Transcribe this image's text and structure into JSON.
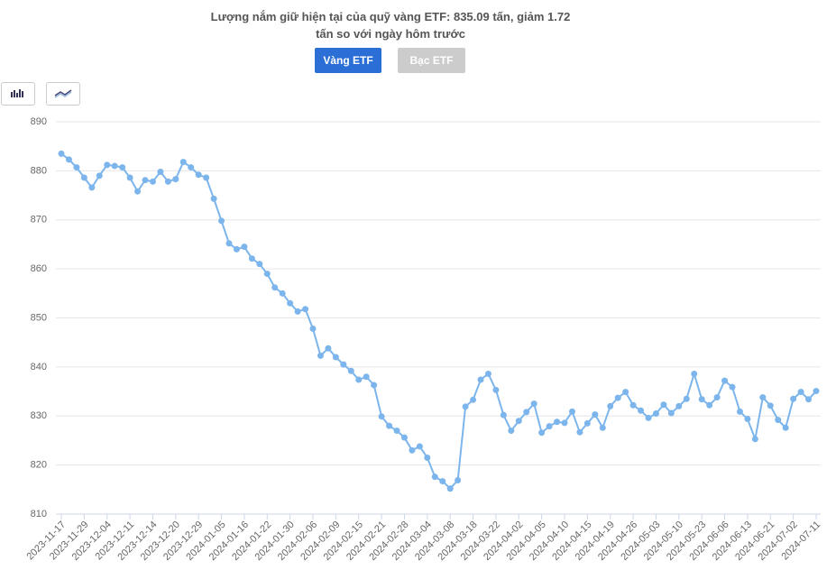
{
  "buttons": [
    "Vàng ETF",
    "Bạc ETF"
  ],
  "chart_data": {
    "type": "line",
    "title": "Lượng nắm giữ hiện tại của quỹ vàng ETF: 835.09 tấn, giảm 1.72 tấn so với ngày hôm trước",
    "color": "#7cb5ec",
    "grid": true,
    "ylim": [
      810,
      890
    ],
    "yticks": [
      810,
      820,
      830,
      840,
      850,
      860,
      870,
      880,
      890
    ],
    "categories": [
      "2023-11-17",
      null,
      null,
      "2023-11-29",
      null,
      null,
      "2023-12-04",
      null,
      null,
      "2023-12-11",
      null,
      null,
      "2023-12-14",
      null,
      null,
      "2023-12-20",
      null,
      null,
      "2023-12-29",
      null,
      null,
      "2024-01-05",
      null,
      null,
      "2024-01-16",
      null,
      null,
      "2024-01-22",
      null,
      null,
      "2024-01-30",
      null,
      null,
      "2024-02-06",
      null,
      null,
      "2024-02-09",
      null,
      null,
      "2024-02-15",
      null,
      null,
      "2024-02-21",
      null,
      null,
      "2024-02-28",
      null,
      null,
      "2024-03-04",
      null,
      null,
      "2024-03-08",
      null,
      null,
      "2024-03-18",
      null,
      null,
      "2024-03-22",
      null,
      null,
      "2024-04-02",
      null,
      null,
      "2024-04-05",
      null,
      null,
      "2024-04-10",
      null,
      null,
      "2024-04-15",
      null,
      null,
      "2024-04-19",
      null,
      null,
      "2024-04-26",
      null,
      null,
      "2024-05-03",
      null,
      null,
      "2024-05-10",
      null,
      null,
      "2024-05-23",
      null,
      null,
      "2024-06-06",
      null,
      null,
      "2024-06-13",
      null,
      null,
      "2024-06-21",
      null,
      null,
      "2024-07-02",
      null,
      null,
      "2024-07-11"
    ],
    "values": [
      883.5,
      882.3,
      880.7,
      878.6,
      876.6,
      879.0,
      881.2,
      881.0,
      880.7,
      878.6,
      875.8,
      878.1,
      877.8,
      879.8,
      877.8,
      878.3,
      881.8,
      880.7,
      879.2,
      878.6,
      874.3,
      869.8,
      865.2,
      864.0,
      864.5,
      862.1,
      861.0,
      859.0,
      856.2,
      855.0,
      853.0,
      851.3,
      851.8,
      847.8,
      842.3,
      843.8,
      842.0,
      840.5,
      839.2,
      837.4,
      838.0,
      836.3,
      829.9,
      828.0,
      827.0,
      825.6,
      823.0,
      823.8,
      821.5,
      817.6,
      816.7,
      815.2,
      816.9,
      831.9,
      833.3,
      837.4,
      838.6,
      835.3,
      830.2,
      827.0,
      829.0,
      830.8,
      832.5,
      826.6,
      827.9,
      828.8,
      828.6,
      830.9,
      826.7,
      828.5,
      830.3,
      827.6,
      832.0,
      833.7,
      834.9,
      832.2,
      831.1,
      829.6,
      830.5,
      832.3,
      830.6,
      832.0,
      833.5,
      838.6,
      833.4,
      832.2,
      833.8,
      837.2,
      835.9,
      830.9,
      829.4,
      825.3,
      833.8,
      832.1,
      829.2,
      827.6,
      833.5,
      834.9,
      833.4,
      835.09
    ]
  }
}
